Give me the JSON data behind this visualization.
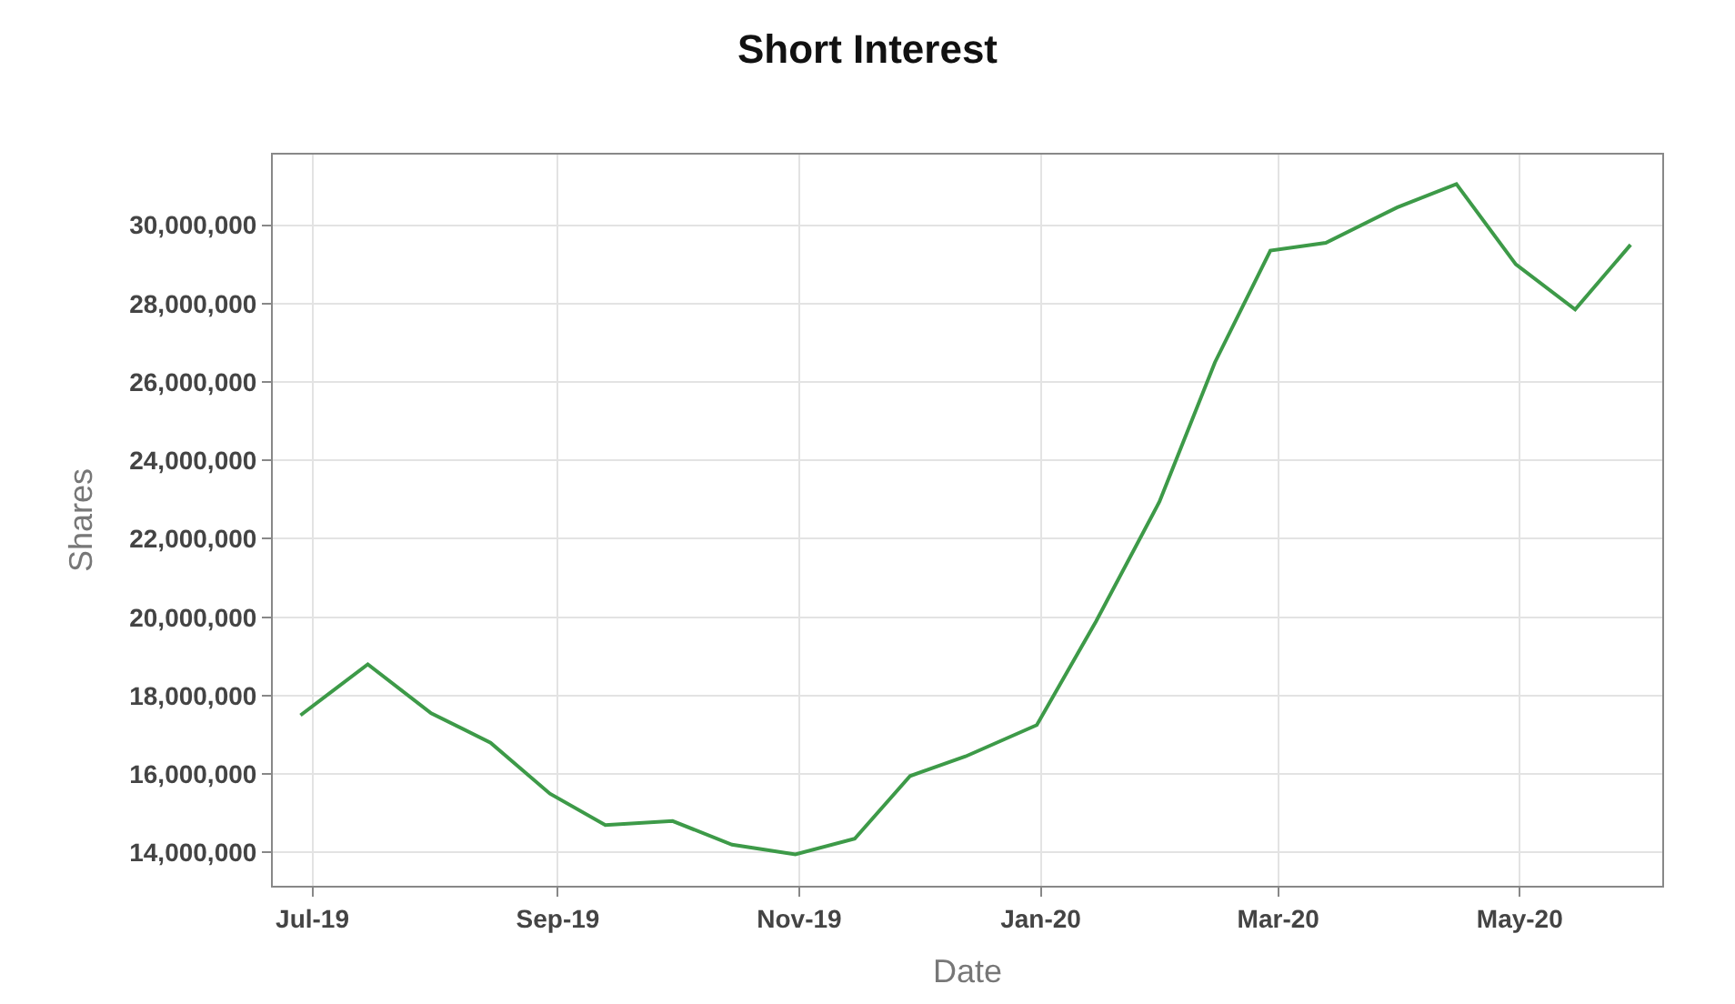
{
  "chart_data": {
    "type": "line",
    "title": "Short Interest",
    "xlabel": "Date",
    "ylabel": "Shares",
    "x": [
      "2019-06-28",
      "2019-07-15",
      "2019-07-31",
      "2019-08-15",
      "2019-08-30",
      "2019-09-13",
      "2019-09-30",
      "2019-10-15",
      "2019-10-31",
      "2019-11-15",
      "2019-11-29",
      "2019-12-13",
      "2019-12-31",
      "2020-01-15",
      "2020-01-31",
      "2020-02-14",
      "2020-02-28",
      "2020-03-13",
      "2020-03-31",
      "2020-04-15",
      "2020-04-30",
      "2020-05-15",
      "2020-05-29"
    ],
    "series": [
      {
        "color": "#3d9a48",
        "values": [
          17500000,
          18800000,
          17550000,
          16800000,
          15500000,
          14700000,
          14800000,
          14200000,
          13950000,
          14350000,
          15950000,
          16450000,
          17250000,
          19900000,
          22950000,
          26500000,
          29350000,
          29550000,
          30450000,
          31050000,
          29000000,
          27850000,
          29500000
        ]
      }
    ],
    "xlim": [
      "2019-06-21",
      "2020-06-06"
    ],
    "xticks": [
      {
        "value": "2019-07-01",
        "label": "Jul-19"
      },
      {
        "value": "2019-09-01",
        "label": "Sep-19"
      },
      {
        "value": "2019-11-01",
        "label": "Nov-19"
      },
      {
        "value": "2020-01-01",
        "label": "Jan-20"
      },
      {
        "value": "2020-03-01",
        "label": "Mar-20"
      },
      {
        "value": "2020-05-01",
        "label": "May-20"
      }
    ],
    "ylim": [
      13150000,
      31800000
    ],
    "yticks": [
      {
        "value": 14000000,
        "label": "14,000,000"
      },
      {
        "value": 16000000,
        "label": "16,000,000"
      },
      {
        "value": 18000000,
        "label": "18,000,000"
      },
      {
        "value": 20000000,
        "label": "20,000,000"
      },
      {
        "value": 22000000,
        "label": "22,000,000"
      },
      {
        "value": 24000000,
        "label": "24,000,000"
      },
      {
        "value": 26000000,
        "label": "26,000,000"
      },
      {
        "value": 28000000,
        "label": "28,000,000"
      },
      {
        "value": 30000000,
        "label": "30,000,000"
      }
    ],
    "grid": true,
    "line_style": "solid",
    "marker": "none"
  }
}
